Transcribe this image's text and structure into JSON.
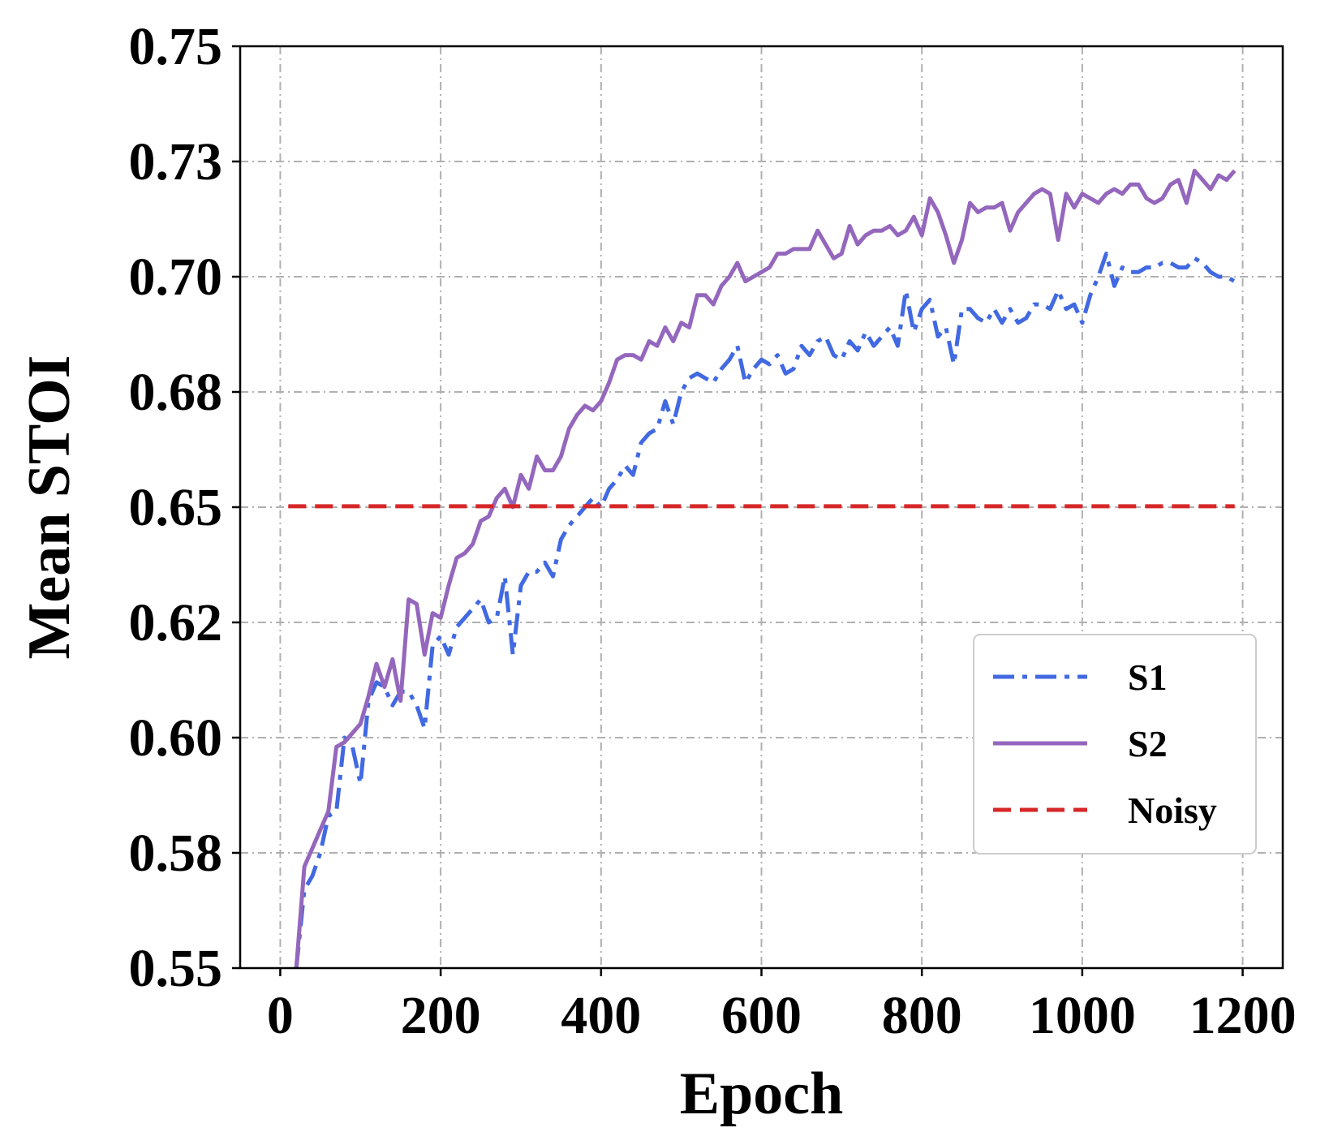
{
  "chart_data": {
    "type": "line",
    "title": "",
    "xlabel": "Epoch",
    "ylabel": "Mean STOI",
    "xlim": [
      -50,
      1250
    ],
    "ylim": [
      0.55,
      0.75
    ],
    "x_ticks": [
      0,
      200,
      400,
      600,
      800,
      1000,
      1200
    ],
    "x_tick_labels": [
      "0",
      "200",
      "400",
      "600",
      "800",
      "1000",
      "1200"
    ],
    "y_ticks": [
      0.55,
      0.575,
      0.6,
      0.625,
      0.65,
      0.675,
      0.7,
      0.725,
      0.75
    ],
    "y_tick_labels": [
      "0.55",
      "0.58",
      "0.60",
      "0.62",
      "0.65",
      "0.68",
      "0.70",
      "0.73",
      "0.75"
    ],
    "grid": true,
    "legend_position": "lower-right",
    "series": [
      {
        "name": "S1",
        "style": "dashdot",
        "color": "#4169e1",
        "x": [
          20,
          30,
          40,
          50,
          60,
          70,
          80,
          90,
          100,
          110,
          120,
          130,
          140,
          150,
          160,
          170,
          180,
          190,
          200,
          210,
          220,
          230,
          240,
          250,
          260,
          270,
          280,
          290,
          300,
          310,
          320,
          330,
          340,
          350,
          360,
          370,
          380,
          390,
          400,
          410,
          420,
          430,
          440,
          450,
          460,
          470,
          480,
          490,
          500,
          510,
          520,
          530,
          540,
          550,
          560,
          570,
          580,
          590,
          600,
          610,
          620,
          630,
          640,
          650,
          660,
          670,
          680,
          690,
          700,
          710,
          720,
          730,
          740,
          750,
          760,
          770,
          780,
          790,
          800,
          810,
          820,
          830,
          840,
          850,
          860,
          870,
          880,
          890,
          900,
          910,
          920,
          930,
          940,
          950,
          960,
          970,
          980,
          990,
          1000,
          1010,
          1020,
          1030,
          1040,
          1050,
          1060,
          1070,
          1080,
          1090,
          1100,
          1110,
          1120,
          1130,
          1140,
          1150,
          1160,
          1170,
          1180,
          1190
        ],
        "values": [
          0.55,
          0.567,
          0.57,
          0.575,
          0.583,
          0.584,
          0.6,
          0.598,
          0.59,
          0.608,
          0.612,
          0.611,
          0.607,
          0.61,
          0.61,
          0.607,
          0.602,
          0.62,
          0.622,
          0.618,
          0.624,
          0.626,
          0.628,
          0.63,
          0.625,
          0.626,
          0.635,
          0.618,
          0.633,
          0.636,
          0.636,
          0.638,
          0.635,
          0.643,
          0.646,
          0.648,
          0.65,
          0.652,
          0.65,
          0.654,
          0.656,
          0.659,
          0.657,
          0.664,
          0.666,
          0.667,
          0.673,
          0.668,
          0.675,
          0.678,
          0.679,
          0.678,
          0.677,
          0.68,
          0.682,
          0.685,
          0.677,
          0.68,
          0.682,
          0.681,
          0.683,
          0.679,
          0.68,
          0.685,
          0.683,
          0.686,
          0.687,
          0.683,
          0.682,
          0.686,
          0.684,
          0.688,
          0.685,
          0.687,
          0.689,
          0.685,
          0.697,
          0.688,
          0.693,
          0.695,
          0.687,
          0.689,
          0.681,
          0.693,
          0.693,
          0.691,
          0.69,
          0.693,
          0.69,
          0.693,
          0.69,
          0.691,
          0.694,
          0.694,
          0.693,
          0.697,
          0.693,
          0.694,
          0.69,
          0.696,
          0.7,
          0.705,
          0.698,
          0.702,
          0.701,
          0.701,
          0.702,
          0.702,
          0.703,
          0.703,
          0.702,
          0.702,
          0.704,
          0.703,
          0.701,
          0.7,
          0.7,
          0.699
        ]
      },
      {
        "name": "S2",
        "style": "solid",
        "color": "#9467bd",
        "x": [
          20,
          30,
          40,
          50,
          60,
          70,
          80,
          90,
          100,
          110,
          120,
          130,
          140,
          150,
          160,
          170,
          180,
          190,
          200,
          210,
          220,
          230,
          240,
          250,
          260,
          270,
          280,
          290,
          300,
          310,
          320,
          330,
          340,
          350,
          360,
          370,
          380,
          390,
          400,
          410,
          420,
          430,
          440,
          450,
          460,
          470,
          480,
          490,
          500,
          510,
          520,
          530,
          540,
          550,
          560,
          570,
          580,
          590,
          600,
          610,
          620,
          630,
          640,
          650,
          660,
          670,
          680,
          690,
          700,
          710,
          720,
          730,
          740,
          750,
          760,
          770,
          780,
          790,
          800,
          810,
          820,
          830,
          840,
          850,
          860,
          870,
          880,
          890,
          900,
          910,
          920,
          930,
          940,
          950,
          960,
          970,
          980,
          990,
          1000,
          1010,
          1020,
          1030,
          1040,
          1050,
          1060,
          1070,
          1080,
          1090,
          1100,
          1110,
          1120,
          1130,
          1140,
          1150,
          1160,
          1170,
          1180,
          1190
        ],
        "values": [
          0.55,
          0.572,
          0.576,
          0.58,
          0.584,
          0.598,
          0.599,
          0.601,
          0.603,
          0.609,
          0.616,
          0.611,
          0.617,
          0.608,
          0.63,
          0.629,
          0.618,
          0.627,
          0.626,
          0.633,
          0.639,
          0.64,
          0.642,
          0.647,
          0.648,
          0.652,
          0.654,
          0.65,
          0.657,
          0.654,
          0.661,
          0.658,
          0.658,
          0.661,
          0.667,
          0.67,
          0.672,
          0.671,
          0.673,
          0.677,
          0.682,
          0.683,
          0.683,
          0.682,
          0.686,
          0.685,
          0.689,
          0.686,
          0.69,
          0.689,
          0.696,
          0.696,
          0.694,
          0.698,
          0.7,
          0.703,
          0.699,
          0.7,
          0.701,
          0.702,
          0.705,
          0.705,
          0.706,
          0.706,
          0.706,
          0.71,
          0.707,
          0.704,
          0.705,
          0.711,
          0.707,
          0.709,
          0.71,
          0.71,
          0.711,
          0.709,
          0.71,
          0.713,
          0.709,
          0.717,
          0.714,
          0.709,
          0.703,
          0.708,
          0.716,
          0.714,
          0.715,
          0.715,
          0.716,
          0.71,
          0.714,
          0.716,
          0.718,
          0.719,
          0.718,
          0.708,
          0.718,
          0.715,
          0.718,
          0.717,
          0.716,
          0.718,
          0.719,
          0.718,
          0.72,
          0.72,
          0.717,
          0.716,
          0.717,
          0.72,
          0.721,
          0.716,
          0.723,
          0.721,
          0.719,
          0.722,
          0.721,
          0.723
        ]
      },
      {
        "name": "Noisy",
        "style": "dashed",
        "color": "#d62728",
        "x": [
          10,
          1190
        ],
        "values": [
          0.6502,
          0.6502
        ]
      }
    ]
  }
}
